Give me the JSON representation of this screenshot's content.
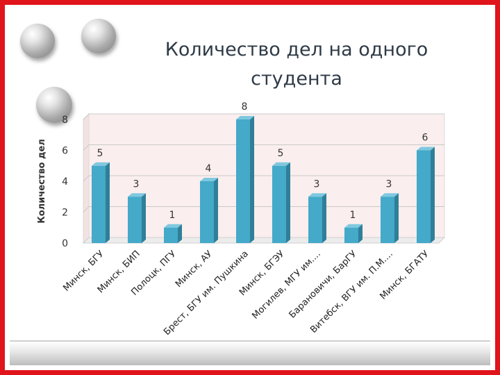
{
  "slide": {
    "title_line1": "Количество дел на одного",
    "title_line2": "студента"
  },
  "colors": {
    "frame": "#e0141b",
    "bar": "#45a9c9",
    "bar_side": "#2f7f98",
    "plot_background": "#fbeeee",
    "title": "#2e3a46"
  },
  "chart_data": {
    "type": "bar",
    "title": "",
    "xlabel": "",
    "ylabel": "Количество дел",
    "ylim": [
      0,
      8
    ],
    "yticks": [
      0,
      2,
      4,
      6,
      8
    ],
    "grid": true,
    "legend": "none",
    "categories": [
      "Минск, БГУ",
      "Минск, БИП",
      "Полоцк, ПГУ",
      "Минск, АУ",
      "Брест, БГУ им. Пушкина",
      "Минск, БГЭУ",
      "Могилев, МГУ им....",
      "Барановичи, БарГУ",
      "Витебск, ВГУ им. П.М....",
      "Минск, БГАТУ"
    ],
    "values": [
      5,
      3,
      1,
      4,
      8,
      5,
      3,
      1,
      3,
      6
    ],
    "data_labels": [
      "5",
      "3",
      "1",
      "4",
      "8",
      "5",
      "3",
      "1",
      "3",
      "6"
    ]
  }
}
